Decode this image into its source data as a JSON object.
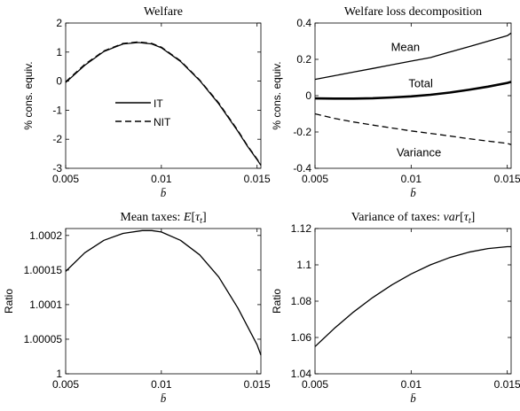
{
  "chart_data": [
    {
      "type": "line",
      "title": "Welfare",
      "xlabel": "b̄",
      "ylabel": "% cons. equiv.",
      "xlim": [
        0.005,
        0.0152
      ],
      "ylim": [
        -3,
        2
      ],
      "xticks": [
        0.005,
        0.01,
        0.015
      ],
      "xtick_labels": [
        "0.005",
        "0.01",
        "0.015"
      ],
      "yticks": [
        2,
        1,
        0,
        -1,
        -2,
        -3
      ],
      "ytick_labels": [
        "2",
        "1",
        "0",
        "-1",
        "-2",
        "-3"
      ],
      "legend": {
        "placement": "center-left",
        "entries": [
          "IT",
          "NIT"
        ]
      },
      "series": [
        {
          "name": "IT",
          "style": "solid",
          "color": "#000000",
          "x": [
            0.005,
            0.006,
            0.007,
            0.008,
            0.0088,
            0.0095,
            0.01,
            0.011,
            0.012,
            0.013,
            0.014,
            0.0145,
            0.015,
            0.0152
          ],
          "y": [
            -0.05,
            0.55,
            1.02,
            1.28,
            1.33,
            1.28,
            1.15,
            0.68,
            0.02,
            -0.78,
            -1.73,
            -2.24,
            -2.7,
            -2.9
          ]
        },
        {
          "name": "NIT",
          "style": "dashed",
          "color": "#000000",
          "x": [
            0.005,
            0.006,
            0.007,
            0.008,
            0.0088,
            0.0095,
            0.01,
            0.011,
            0.012,
            0.013,
            0.014,
            0.0145,
            0.015,
            0.0152
          ],
          "y": [
            -0.02,
            0.58,
            1.04,
            1.3,
            1.35,
            1.3,
            1.17,
            0.7,
            0.04,
            -0.75,
            -1.7,
            -2.22,
            -2.68,
            -2.88
          ]
        }
      ]
    },
    {
      "type": "line",
      "title": "Welfare loss decomposition",
      "xlabel": "b̄",
      "ylabel": "% cons. equiv.",
      "xlim": [
        0.005,
        0.0152
      ],
      "ylim": [
        -0.4,
        0.4
      ],
      "xticks": [
        0.005,
        0.01,
        0.015
      ],
      "xtick_labels": [
        "0.005",
        "0.01",
        "0.015"
      ],
      "yticks": [
        0.4,
        0.2,
        0,
        -0.2,
        -0.4
      ],
      "ytick_labels": [
        "0.4",
        "0.2",
        "0",
        "-0.2",
        "-0.4"
      ],
      "annotations": [
        {
          "text": "Mean",
          "x": 0.0097,
          "y": 0.27
        },
        {
          "text": "Total",
          "x": 0.0105,
          "y": 0.07
        },
        {
          "text": "Variance",
          "x": 0.0104,
          "y": -0.31
        }
      ],
      "series": [
        {
          "name": "Mean",
          "style": "solid",
          "width": "thin",
          "color": "#000000",
          "x": [
            0.005,
            0.006,
            0.007,
            0.008,
            0.009,
            0.01,
            0.011,
            0.012,
            0.013,
            0.014,
            0.015,
            0.0152
          ],
          "y": [
            0.09,
            0.11,
            0.13,
            0.15,
            0.17,
            0.19,
            0.21,
            0.24,
            0.27,
            0.3,
            0.33,
            0.345
          ]
        },
        {
          "name": "Total",
          "style": "solid",
          "width": "thick",
          "color": "#000000",
          "x": [
            0.005,
            0.006,
            0.007,
            0.008,
            0.009,
            0.01,
            0.011,
            0.012,
            0.013,
            0.014,
            0.015,
            0.0152
          ],
          "y": [
            -0.015,
            -0.016,
            -0.016,
            -0.014,
            -0.01,
            -0.004,
            0.005,
            0.017,
            0.032,
            0.05,
            0.07,
            0.076
          ]
        },
        {
          "name": "Variance",
          "style": "dashed",
          "width": "thin",
          "color": "#000000",
          "x": [
            0.005,
            0.006,
            0.007,
            0.008,
            0.009,
            0.01,
            0.011,
            0.012,
            0.013,
            0.014,
            0.015,
            0.0152
          ],
          "y": [
            -0.1,
            -0.125,
            -0.145,
            -0.162,
            -0.178,
            -0.194,
            -0.208,
            -0.222,
            -0.237,
            -0.25,
            -0.263,
            -0.27
          ]
        }
      ]
    },
    {
      "type": "line",
      "title": "Mean taxes: E[τt]",
      "xlabel": "b̄",
      "ylabel": "Ratio",
      "xlim": [
        0.005,
        0.0152
      ],
      "ylim": [
        1.0,
        1.00021
      ],
      "xticks": [
        0.005,
        0.01,
        0.015
      ],
      "xtick_labels": [
        "0.005",
        "0.01",
        "0.015"
      ],
      "yticks": [
        1.0002,
        1.00015,
        1.0001,
        1.00005,
        1.0
      ],
      "ytick_labels": [
        "1.0002",
        "1.00015",
        "1.0001",
        "1.00005",
        "1"
      ],
      "series": [
        {
          "name": "",
          "style": "solid",
          "color": "#000000",
          "x": [
            0.005,
            0.006,
            0.007,
            0.008,
            0.009,
            0.0095,
            0.01,
            0.011,
            0.012,
            0.013,
            0.014,
            0.015,
            0.0152
          ],
          "y": [
            1.000148,
            1.000175,
            1.000193,
            1.000203,
            1.000207,
            1.000207,
            1.000205,
            1.000193,
            1.000172,
            1.00014,
            1.000095,
            1.000042,
            1.000027
          ]
        }
      ]
    },
    {
      "type": "line",
      "title": "Variance of taxes: var[τt]",
      "xlabel": "b̄",
      "ylabel": "Ratio",
      "xlim": [
        0.005,
        0.0152
      ],
      "ylim": [
        1.04,
        1.12
      ],
      "xticks": [
        0.005,
        0.01,
        0.015
      ],
      "xtick_labels": [
        "0.005",
        "0.01",
        "0.015"
      ],
      "yticks": [
        1.12,
        1.1,
        1.08,
        1.06,
        1.04
      ],
      "ytick_labels": [
        "1.12",
        "1.1",
        "1.08",
        "1.06",
        "1.04"
      ],
      "series": [
        {
          "name": "",
          "style": "solid",
          "color": "#000000",
          "x": [
            0.005,
            0.006,
            0.007,
            0.008,
            0.009,
            0.01,
            0.011,
            0.012,
            0.013,
            0.014,
            0.015,
            0.0152
          ],
          "y": [
            1.055,
            1.065,
            1.074,
            1.082,
            1.089,
            1.095,
            1.1,
            1.104,
            1.107,
            1.109,
            1.11,
            1.11
          ]
        }
      ]
    }
  ]
}
